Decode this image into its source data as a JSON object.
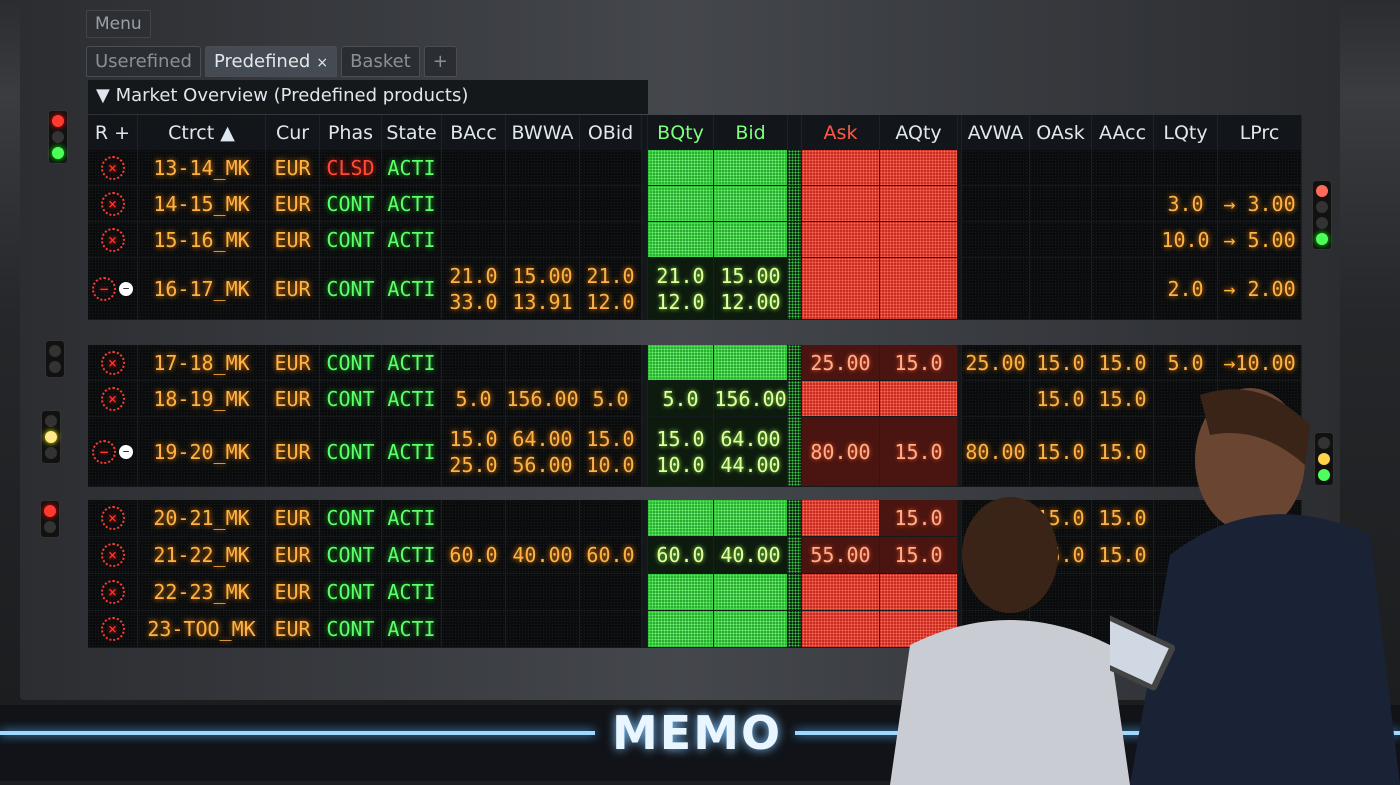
{
  "menu": {
    "label": "Menu"
  },
  "tabs": [
    {
      "label": "Userefined"
    },
    {
      "label": "Predefined",
      "close": "×"
    },
    {
      "label": "Basket"
    },
    {
      "label": "+"
    }
  ],
  "section": {
    "title": "Market Overview (Predefined products)",
    "toggle": "▼"
  },
  "columns": {
    "r": "R +",
    "ctrct": "Ctrct ▲",
    "cur": "Cur",
    "phas": "Phas",
    "state": "State",
    "bacc": "BAcc",
    "bwwa": "BWWA",
    "obid": "OBid",
    "bqty": "BQty",
    "bid": "Bid",
    "ask": "Ask",
    "aqty": "AQty",
    "avwa": "AVWA",
    "oask": "OAsk",
    "aacc": "AAcc",
    "lqty": "LQty",
    "lprc": "LPrc"
  },
  "colors": {
    "led_amber": "#ffb347",
    "led_green": "#5dff6a",
    "led_red": "#ff4a3a"
  },
  "groups": [
    [
      {
        "icon": "circle-x",
        "ctrct": "13-14_MK",
        "cur": "EUR",
        "phas": "CLSD",
        "state": "ACTI"
      },
      {
        "icon": "circle-x",
        "ctrct": "14-15_MK",
        "cur": "EUR",
        "phas": "CONT",
        "state": "ACTI",
        "lqty": "3.0",
        "lprc": "→ 3.00"
      },
      {
        "icon": "circle-x",
        "ctrct": "15-16_MK",
        "cur": "EUR",
        "phas": "CONT",
        "state": "ACTI",
        "lqty": "10.0",
        "lprc": "→ 5.00"
      },
      {
        "icon": "circle-minus",
        "ctrct": "16-17_MK",
        "cur": "EUR",
        "phas": "CONT",
        "state": "ACTI",
        "bacc": [
          "21.0",
          "33.0"
        ],
        "bwwa": [
          "15.00",
          "13.91"
        ],
        "obid": [
          "21.0",
          "12.0"
        ],
        "bqty": [
          "21.0",
          "12.0"
        ],
        "bid": [
          "15.00",
          "12.00"
        ],
        "lqty": "2.0",
        "lprc": "→ 2.00"
      }
    ],
    [
      {
        "icon": "circle-x",
        "ctrct": "17-18_MK",
        "cur": "EUR",
        "phas": "CONT",
        "state": "ACTI",
        "ask": "25.00",
        "aqty": "15.0",
        "avwa": "25.00",
        "oask": "15.0",
        "aacc": "15.0",
        "lqty": "5.0",
        "lprc": "→10.00"
      },
      {
        "icon": "circle-x",
        "ctrct": "18-19_MK",
        "cur": "EUR",
        "phas": "CONT",
        "state": "ACTI",
        "bacc": "5.0",
        "bwwa": "156.00",
        "obid": "5.0",
        "bqty": "5.0",
        "bid": "156.00",
        "oask": "15.0",
        "aacc": "15.0"
      },
      {
        "icon": "circle-minus",
        "ctrct": "19-20_MK",
        "cur": "EUR",
        "phas": "CONT",
        "state": "ACTI",
        "bacc": [
          "15.0",
          "25.0"
        ],
        "bwwa": [
          "64.00",
          "56.00"
        ],
        "obid": [
          "15.0",
          "10.0"
        ],
        "bqty": [
          "15.0",
          "10.0"
        ],
        "bid": [
          "64.00",
          "44.00"
        ],
        "ask": "80.00",
        "aqty": "15.0",
        "avwa": "80.00",
        "oask": "15.0",
        "aacc": "15.0"
      }
    ],
    [
      {
        "icon": "circle-x",
        "ctrct": "20-21_MK",
        "cur": "EUR",
        "phas": "CONT",
        "state": "ACTI",
        "aqty": "15.0",
        "oask": "15.0",
        "aacc": "15.0"
      },
      {
        "icon": "circle-x",
        "ctrct": "21-22_MK",
        "cur": "EUR",
        "phas": "CONT",
        "state": "ACTI",
        "bacc": "60.0",
        "bwwa": "40.00",
        "obid": "60.0",
        "bqty": "60.0",
        "bid": "40.00",
        "ask": "55.00",
        "aqty": "15.0",
        "oask": "15.0",
        "aacc": "15.0"
      },
      {
        "icon": "circle-x",
        "ctrct": "22-23_MK",
        "cur": "EUR",
        "phas": "CONT",
        "state": "ACTI"
      },
      {
        "icon": "circle-x",
        "ctrct": "23-TOO_MK",
        "cur": "EUR",
        "phas": "CONT",
        "state": "ACTI"
      }
    ]
  ],
  "brand": {
    "logo": "MEMO"
  }
}
